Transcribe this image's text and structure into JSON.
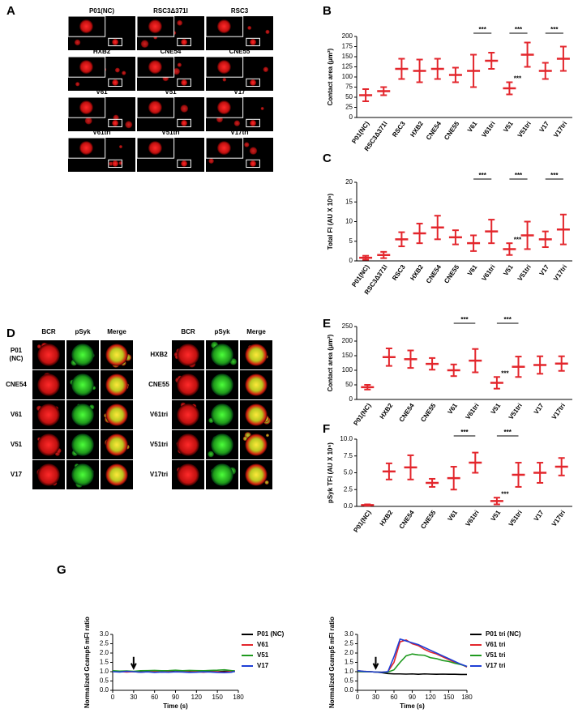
{
  "panels": {
    "A": {
      "letter": "A",
      "labels": [
        "P01(NC)",
        "RSC3Δ371I",
        "RSC3",
        "HXB2",
        "CNE54",
        "CNE55",
        "V61",
        "V51",
        "V17",
        "V61tri",
        "V51tri",
        "V17tri"
      ]
    },
    "D": {
      "letter": "D",
      "headers": [
        "BCR",
        "pSyk",
        "Merge"
      ],
      "left_rows": [
        [
          "P01",
          "(NC)"
        ],
        [
          "CNE54"
        ],
        [
          "V61"
        ],
        [
          "V51"
        ],
        [
          "V17"
        ]
      ],
      "right_rows": [
        [
          "HXB2"
        ],
        [
          "CNE55"
        ],
        [
          "V61tri"
        ],
        [
          "V51tri"
        ],
        [
          "V17tri"
        ]
      ]
    },
    "G": {
      "letter": "G"
    }
  },
  "chart_data": [
    {
      "type": "dotplot",
      "panel": "B",
      "y_label": "Contact area (μm²)",
      "categories": [
        "P01(NC)",
        "RSC3Δ371I",
        "RSC3",
        "HXB2",
        "CNE54",
        "CNE55",
        "V61",
        "V61tri",
        "V51",
        "V51tri",
        "V17",
        "V17tri"
      ],
      "values": [
        55,
        65,
        120,
        115,
        120,
        105,
        115,
        140,
        72,
        155,
        115,
        145
      ],
      "sd": [
        15,
        10,
        25,
        28,
        25,
        18,
        40,
        20,
        15,
        30,
        20,
        30
      ],
      "ylim": [
        0,
        200
      ],
      "yticks": [
        0,
        25,
        50,
        75,
        100,
        125,
        150,
        175,
        200
      ],
      "color": "#e3262c",
      "brackets": [
        {
          "text": "***",
          "between": [
            "V61",
            "V61tri"
          ]
        },
        {
          "text": "***",
          "between": [
            "V51",
            "V51tri"
          ]
        },
        {
          "text": "***",
          "between": [
            "V17",
            "V17tri"
          ]
        }
      ],
      "stars": [
        {
          "text": "***",
          "category": "V51"
        }
      ]
    },
    {
      "type": "dotplot",
      "panel": "C",
      "y_label": "Total FI (AU X 10⁵)",
      "categories": [
        "P01(NC)",
        "RSC3Δ371I",
        "RSC3",
        "HXB2",
        "CNE54",
        "CNE55",
        "V61",
        "V61tri",
        "V51",
        "V51tri",
        "V17",
        "V17tri"
      ],
      "values": [
        0.8,
        1.5,
        5.5,
        7,
        8.5,
        6,
        4.5,
        7.5,
        3,
        6.5,
        5.5,
        8
      ],
      "sd": [
        0.5,
        0.8,
        1.8,
        2.5,
        3,
        1.8,
        2,
        3,
        1.5,
        3.5,
        2,
        3.8
      ],
      "ylim": [
        0,
        20
      ],
      "yticks": [
        0,
        5,
        10,
        15,
        20
      ],
      "color": "#e3262c",
      "brackets": [
        {
          "text": "***",
          "between": [
            "V61",
            "V61tri"
          ]
        },
        {
          "text": "***",
          "between": [
            "V51",
            "V51tri"
          ]
        },
        {
          "text": "***",
          "between": [
            "V17",
            "V17tri"
          ]
        }
      ],
      "stars": [
        {
          "text": "***",
          "category": "V51"
        }
      ]
    },
    {
      "type": "dotplot",
      "panel": "E",
      "y_label": "Contact area (μm²)",
      "categories": [
        "P01(NC)",
        "HXB2",
        "CNE54",
        "CNE55",
        "V61",
        "V61tri",
        "V51",
        "V51tri",
        "V17",
        "V17tri"
      ],
      "values": [
        42,
        145,
        138,
        122,
        100,
        133,
        57,
        112,
        118,
        123
      ],
      "sd": [
        8,
        30,
        30,
        20,
        20,
        40,
        20,
        35,
        30,
        25
      ],
      "ylim": [
        0,
        250
      ],
      "yticks": [
        0,
        50,
        100,
        150,
        200,
        250
      ],
      "color": "#e3262c",
      "brackets": [
        {
          "text": "***",
          "between": [
            "V61",
            "V61tri"
          ]
        },
        {
          "text": "***",
          "between": [
            "V51",
            "V51tri"
          ]
        }
      ],
      "stars": [
        {
          "text": "***",
          "category": "V51"
        }
      ]
    },
    {
      "type": "dotplot",
      "panel": "F",
      "y_label": "pSyk TFI (AU X 10⁵)",
      "categories": [
        "P01(NC)",
        "HXB2",
        "CNE54",
        "CNE55",
        "V61",
        "V61tri",
        "V51",
        "V51tri",
        "V17",
        "V17tri"
      ],
      "values": [
        0.2,
        5.2,
        5.8,
        3.5,
        4.2,
        6.5,
        0.8,
        4.7,
        5.0,
        5.9
      ],
      "sd": [
        0.1,
        1.2,
        1.8,
        0.6,
        1.7,
        1.5,
        0.5,
        1.8,
        1.5,
        1.3
      ],
      "ylim": [
        0,
        10
      ],
      "yticks": [
        {
          "value": 0,
          "label": "0.0"
        },
        {
          "value": 2.5,
          "label": "2.5"
        },
        {
          "value": 5,
          "label": "5.0"
        },
        {
          "value": 7.5,
          "label": "7.5"
        },
        {
          "value": 10,
          "label": "10.0"
        }
      ],
      "color": "#e3262c",
      "brackets": [
        {
          "text": "***",
          "between": [
            "V61",
            "V61tri"
          ]
        },
        {
          "text": "***",
          "between": [
            "V51",
            "V51tri"
          ]
        }
      ],
      "stars": [
        {
          "text": "***",
          "category": "V51"
        }
      ]
    },
    {
      "type": "line",
      "x_label": "Time (s)",
      "y_label": "Normalized Gcamp5 mFI ratio",
      "arrow_x": 30,
      "x": [
        0,
        10,
        20,
        30,
        40,
        50,
        60,
        70,
        80,
        90,
        100,
        110,
        120,
        130,
        140,
        150,
        160,
        170,
        175
      ],
      "series": [
        {
          "name": "P01 (NC)",
          "color": "#000000",
          "values": [
            1.02,
            1.0,
            1.03,
            1.0,
            1.01,
            1.02,
            1.0,
            1.01,
            1.03,
            1.0,
            1.02,
            1.01,
            1.0,
            1.02,
            1.01,
            1.0,
            1.02,
            1.03,
            1.0
          ]
        },
        {
          "name": "V61",
          "color": "#e3262c",
          "values": [
            1.03,
            1.01,
            0.98,
            1.0,
            0.97,
            1.0,
            1.02,
            0.98,
            1.0,
            0.99,
            1.02,
            0.98,
            1.0,
            0.97,
            1.0,
            0.99,
            0.97,
            1.02,
            1.05
          ]
        },
        {
          "name": "V51",
          "color": "#1f9a1f",
          "values": [
            1.05,
            1.03,
            1.04,
            1.02,
            1.05,
            1.06,
            1.07,
            1.05,
            1.06,
            1.08,
            1.05,
            1.07,
            1.06,
            1.05,
            1.07,
            1.08,
            1.1,
            1.06,
            1.04
          ]
        },
        {
          "name": "V17",
          "color": "#1f3fd6",
          "values": [
            1.0,
            0.98,
            1.02,
            1.0,
            0.97,
            0.99,
            0.96,
            0.98,
            0.97,
            0.99,
            0.98,
            0.96,
            0.97,
            0.99,
            0.98,
            0.96,
            0.95,
            0.97,
            1.02
          ]
        }
      ],
      "xlim": [
        0,
        180
      ],
      "xticks": [
        0,
        30,
        60,
        90,
        120,
        150,
        180
      ],
      "ylim": [
        0,
        3
      ],
      "yticks": [
        {
          "value": 0,
          "label": "0.0"
        },
        {
          "value": 0.5,
          "label": "0.5"
        },
        {
          "value": 1,
          "label": "1.0"
        },
        {
          "value": 1.5,
          "label": "1.5"
        },
        {
          "value": 2,
          "label": "2.0"
        },
        {
          "value": 2.5,
          "label": "2.5"
        },
        {
          "value": 3,
          "label": "3.0"
        }
      ]
    },
    {
      "type": "line",
      "x_label": "Time (s)",
      "y_label": "Normalized Gcamp5 mFI ratio",
      "arrow_x": 30,
      "x": [
        0,
        10,
        20,
        30,
        40,
        50,
        60,
        70,
        80,
        90,
        100,
        110,
        120,
        130,
        140,
        150,
        160,
        170,
        180
      ],
      "series": [
        {
          "name": "P01 tri (NC)",
          "color": "#000000",
          "values": [
            1.0,
            1.0,
            1.0,
            0.98,
            0.95,
            0.9,
            0.88,
            0.88,
            0.87,
            0.88,
            0.86,
            0.88,
            0.87,
            0.86,
            0.87,
            0.86,
            0.86,
            0.85,
            0.85
          ]
        },
        {
          "name": "V61 tri",
          "color": "#e3262c",
          "values": [
            1.05,
            1.02,
            1.0,
            0.98,
            0.97,
            1.0,
            1.5,
            2.6,
            2.7,
            2.5,
            2.4,
            2.2,
            2.05,
            1.95,
            1.8,
            1.65,
            1.5,
            1.4,
            1.25
          ]
        },
        {
          "name": "V51 tri",
          "color": "#1f9a1f",
          "values": [
            1.02,
            1.0,
            1.0,
            0.98,
            0.97,
            0.98,
            1.1,
            1.5,
            1.85,
            1.95,
            1.9,
            1.88,
            1.75,
            1.7,
            1.6,
            1.55,
            1.45,
            1.38,
            1.28
          ]
        },
        {
          "name": "V17 tri",
          "color": "#1f3fd6",
          "values": [
            1.05,
            1.02,
            1.0,
            0.98,
            0.97,
            1.0,
            1.8,
            2.75,
            2.65,
            2.55,
            2.45,
            2.3,
            2.15,
            2.0,
            1.85,
            1.7,
            1.55,
            1.4,
            1.28
          ]
        }
      ],
      "xlim": [
        0,
        180
      ],
      "xticks": [
        0,
        30,
        60,
        90,
        120,
        150,
        180
      ],
      "ylim": [
        0,
        3
      ],
      "yticks": [
        {
          "value": 0,
          "label": "0.0"
        },
        {
          "value": 0.5,
          "label": "0.5"
        },
        {
          "value": 1,
          "label": "1.0"
        },
        {
          "value": 1.5,
          "label": "1.5"
        },
        {
          "value": 2,
          "label": "2.0"
        },
        {
          "value": 2.5,
          "label": "2.5"
        },
        {
          "value": 3,
          "label": "3.0"
        }
      ]
    }
  ]
}
